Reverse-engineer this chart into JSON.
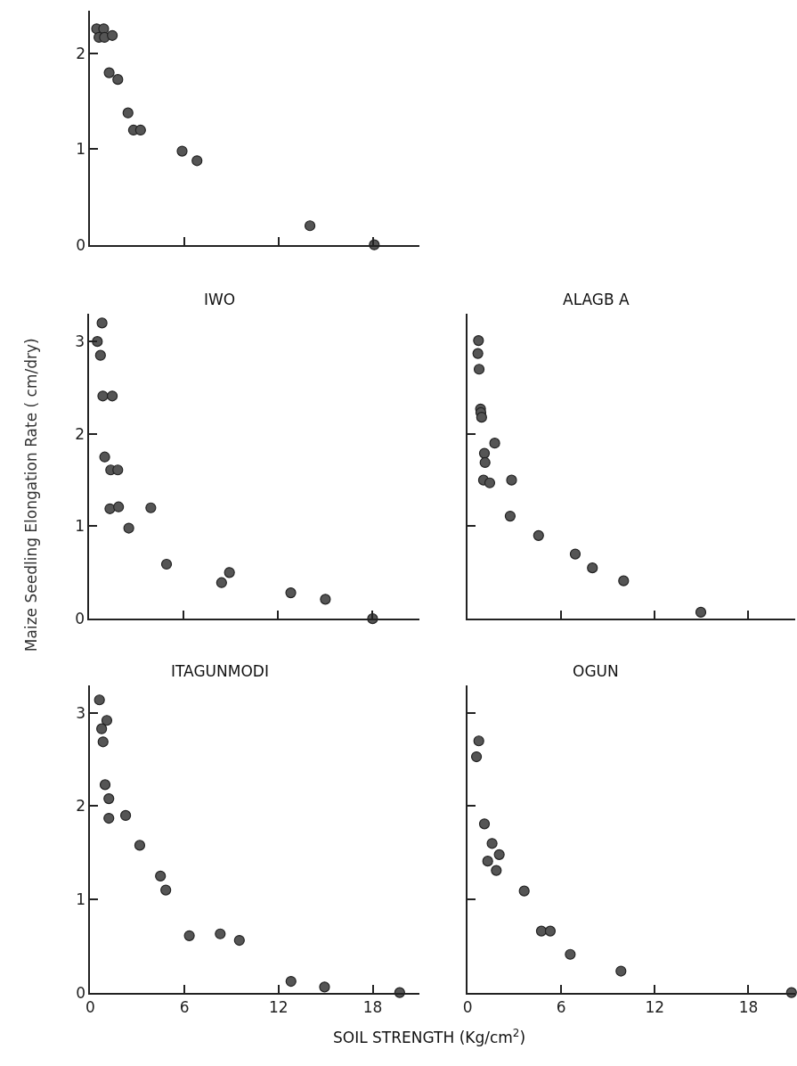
{
  "chart_data": [
    {
      "type": "scatter",
      "x": [
        0.4,
        0.55,
        0.85,
        0.9,
        1.4,
        1.2,
        1.75,
        2.4,
        2.75,
        3.2,
        5.85,
        6.8,
        14.0,
        18.1
      ],
      "values": [
        2.26,
        2.17,
        2.26,
        2.17,
        2.19,
        1.8,
        1.73,
        1.38,
        1.2,
        1.2,
        0.98,
        0.88,
        0.2,
        0
      ],
      "color": "#555555",
      "marker": "circle",
      "xlim": [
        0,
        21
      ],
      "xticks": [
        0,
        6,
        12,
        18
      ],
      "ylim": [
        0,
        2.45
      ],
      "yticks": [
        0,
        1,
        2
      ],
      "tick_labels": "y"
    },
    {
      "type": "scatter",
      "title": "IWO",
      "ylabel": "Maize Seedling Elongation Rate ( cm/dry)",
      "x": [
        0.8,
        0.5,
        0.7,
        0.85,
        1.45,
        0.97,
        1.35,
        1.8,
        1.3,
        1.85,
        3.9,
        2.5,
        4.9,
        8.4,
        8.9,
        12.8,
        15.0,
        18.0
      ],
      "values": [
        3.2,
        3.0,
        2.85,
        2.41,
        2.41,
        1.75,
        1.61,
        1.61,
        1.19,
        1.21,
        1.2,
        0.98,
        0.59,
        0.39,
        0.5,
        0.28,
        0.21,
        0
      ],
      "color": "#555555",
      "marker": "circle",
      "xlim": [
        0,
        21
      ],
      "xticks": [
        0,
        6,
        12,
        18
      ],
      "ylim": [
        0,
        3.3
      ],
      "yticks": [
        0,
        1,
        2,
        3
      ],
      "tick_labels": "y"
    },
    {
      "type": "scatter",
      "title": "ALAGB A",
      "x": [
        0.7,
        0.66,
        0.74,
        0.83,
        0.85,
        0.9,
        1.74,
        1.08,
        1.12,
        1.02,
        1.42,
        2.82,
        2.73,
        4.55,
        6.9,
        8.0,
        10.0,
        14.95
      ],
      "values": [
        3.01,
        2.87,
        2.7,
        2.27,
        2.23,
        2.18,
        1.9,
        1.79,
        1.69,
        1.5,
        1.47,
        1.5,
        1.11,
        0.9,
        0.7,
        0.55,
        0.41,
        0.07
      ],
      "color": "#555555",
      "marker": "circle",
      "xlim": [
        0,
        21
      ],
      "xticks": [
        0,
        6,
        12,
        18
      ],
      "ylim": [
        0,
        3.3
      ],
      "yticks": [
        1,
        2
      ],
      "tick_labels": false
    },
    {
      "type": "scatter",
      "title": "ITAGUNMODI",
      "xlabel": "SOIL STRENGTH (Kg/cm$^{2}$)",
      "x": [
        0.58,
        1.05,
        0.72,
        0.81,
        0.94,
        1.18,
        1.18,
        2.25,
        3.15,
        4.47,
        4.81,
        6.31,
        8.28,
        9.5,
        12.79,
        14.93,
        19.72
      ],
      "values": [
        3.14,
        2.92,
        2.83,
        2.69,
        2.23,
        2.08,
        1.87,
        1.9,
        1.58,
        1.25,
        1.1,
        0.61,
        0.63,
        0.56,
        0.12,
        0.06,
        0
      ],
      "color": "#555555",
      "marker": "circle",
      "xlim": [
        0,
        21
      ],
      "xticks": [
        0,
        6,
        12,
        18
      ],
      "ylim": [
        0,
        3.3
      ],
      "yticks": [
        0,
        1,
        2,
        3
      ]
    },
    {
      "type": "scatter",
      "title": "OGUN",
      "x": [
        0.72,
        0.57,
        1.08,
        1.57,
        2.03,
        1.29,
        1.84,
        3.63,
        4.73,
        5.3,
        6.58,
        9.83,
        20.76
      ],
      "values": [
        2.7,
        2.53,
        1.81,
        1.6,
        1.48,
        1.41,
        1.31,
        1.09,
        0.66,
        0.66,
        0.41,
        0.23,
        0
      ],
      "color": "#555555",
      "marker": "circle",
      "xlim": [
        0,
        21
      ],
      "xticks": [
        0,
        6,
        12,
        18
      ],
      "ylim": [
        0,
        3.3
      ],
      "yticks": [
        1,
        2,
        3
      ],
      "tick_labels": "x"
    }
  ]
}
